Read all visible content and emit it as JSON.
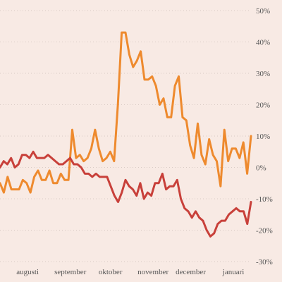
{
  "chart_data": {
    "type": "line",
    "grid": true,
    "legend": "none",
    "ylim": [
      -30,
      50
    ],
    "y_ticks": [
      {
        "value": 50,
        "label": "50%"
      },
      {
        "value": 40,
        "label": "40%"
      },
      {
        "value": 30,
        "label": "30%"
      },
      {
        "value": 20,
        "label": "20%"
      },
      {
        "value": 10,
        "label": "10%"
      },
      {
        "value": 0,
        "label": "0%"
      },
      {
        "value": -10,
        "label": "-10%"
      },
      {
        "value": -20,
        "label": "-20%"
      },
      {
        "value": -30,
        "label": "-30%"
      }
    ],
    "x_ticks": [
      {
        "label": "augusti",
        "at": 0.11
      },
      {
        "label": "september",
        "at": 0.28
      },
      {
        "label": "oktober",
        "at": 0.44
      },
      {
        "label": "november",
        "at": 0.61
      },
      {
        "label": "december",
        "at": 0.76
      },
      {
        "label": "januari",
        "at": 0.93
      }
    ],
    "series": [
      {
        "color": "#ee8a2e",
        "values": [
          -5,
          -8,
          -3,
          -7,
          -7,
          -7,
          -4,
          -5,
          -8,
          -3,
          -1,
          -4,
          -4,
          -1,
          -5,
          -5,
          -2,
          -4,
          -4,
          12,
          3,
          4,
          2,
          3,
          6,
          12,
          6,
          2,
          3,
          5,
          2,
          20,
          43,
          43,
          36,
          32,
          34,
          37,
          28,
          28,
          29,
          26,
          20,
          22,
          16,
          16,
          26,
          29,
          16,
          15,
          7,
          3,
          14,
          4,
          1,
          9,
          4,
          2,
          -6,
          12,
          2,
          6,
          6,
          3,
          8,
          -2,
          10
        ]
      },
      {
        "color": "#c8403a",
        "values": [
          0,
          2,
          1,
          3,
          0,
          1,
          4,
          4,
          3,
          5,
          3,
          3,
          3,
          4,
          3,
          2,
          1,
          1,
          2,
          3,
          1,
          1,
          0,
          -2,
          -2,
          -3,
          -2,
          -3,
          -3,
          -3,
          -6,
          -9,
          -11,
          -8,
          -4,
          -6,
          -7,
          -9,
          -5,
          -10,
          -8,
          -9,
          -5,
          -5,
          -2,
          -7,
          -6,
          -6,
          -4,
          -10,
          -13,
          -14,
          -16,
          -14,
          -16,
          -17,
          -20,
          -22,
          -21,
          -18,
          -17,
          -17,
          -15,
          -14,
          -13,
          -14,
          -14,
          -18,
          -11
        ]
      }
    ]
  }
}
